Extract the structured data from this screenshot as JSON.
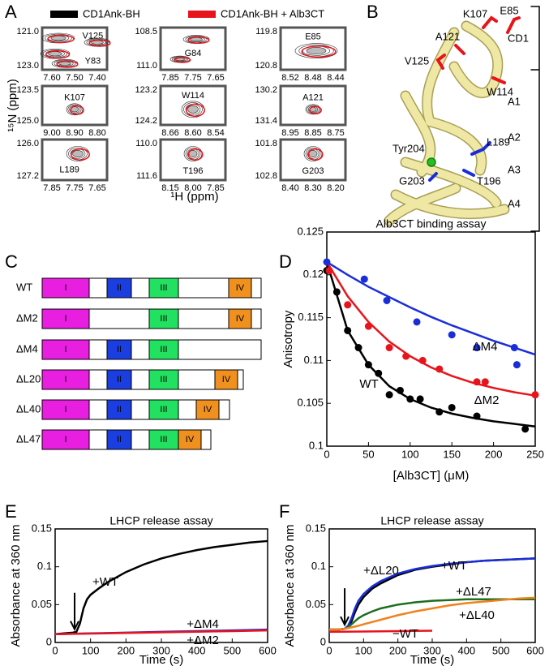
{
  "panel_labels": [
    "A",
    "B",
    "C",
    "D",
    "E",
    "F"
  ],
  "nmr": {
    "legend": [
      {
        "name": "CD1Ank-BH",
        "color": "#000000"
      },
      {
        "name": "CD1Ank-BH + Alb3CT",
        "color": "#e8141c"
      }
    ],
    "x_label": "¹H (ppm)",
    "y_label": "¹⁵N (ppm)",
    "cells": [
      {
        "labels": [
          "V125",
          "Y83"
        ],
        "yticks": [
          "121.0",
          "123.0"
        ],
        "xticks": [
          "7.60",
          "7.50",
          "7.40"
        ]
      },
      {
        "labels": [
          "G84"
        ],
        "yticks": [
          "108.5",
          "111.0"
        ],
        "xticks": [
          "7.85",
          "7.75",
          "7.65"
        ]
      },
      {
        "labels": [
          "E85"
        ],
        "yticks": [
          "119.8",
          "120.8"
        ],
        "xticks": [
          "8.52",
          "8.48",
          "8.44"
        ]
      },
      {
        "labels": [
          "K107"
        ],
        "yticks": [
          "123.5",
          "125.0"
        ],
        "xticks": [
          "9.00",
          "8.90",
          "8.80"
        ]
      },
      {
        "labels": [
          "W114"
        ],
        "yticks": [
          "123.2",
          "124.2"
        ],
        "xticks": [
          "8.66",
          "8.60",
          "8.54"
        ]
      },
      {
        "labels": [
          "A121"
        ],
        "yticks": [
          "130.2",
          "131.4"
        ],
        "xticks": [
          "8.95",
          "8.85",
          "8.75"
        ]
      },
      {
        "labels": [
          "L189"
        ],
        "yticks": [
          "126.0",
          "127.2"
        ],
        "xticks": [
          "7.85",
          "7.75",
          "7.65"
        ]
      },
      {
        "labels": [
          "T196"
        ],
        "yticks": [
          "110.0",
          "111.6"
        ],
        "xticks": [
          "8.15",
          "8.00",
          "7.85"
        ]
      },
      {
        "labels": [
          "G203"
        ],
        "yticks": [
          "101.8",
          "102.8"
        ],
        "xticks": [
          "8.40",
          "8.30",
          "8.20"
        ]
      }
    ]
  },
  "structure": {
    "residues": [
      {
        "label": "K107",
        "color": "#e8141c"
      },
      {
        "label": "E85",
        "color": "#e8141c"
      },
      {
        "label": "A121",
        "color": "#e8141c"
      },
      {
        "label": "V125",
        "color": "#e8141c"
      },
      {
        "label": "W114",
        "color": "#e8141c"
      },
      {
        "label": "Tyr204",
        "color": "#1a9a1a"
      },
      {
        "label": "L189",
        "color": "#1a2ed8"
      },
      {
        "label": "T196",
        "color": "#1a2ed8"
      },
      {
        "label": "G203",
        "color": "#1a2ed8"
      }
    ],
    "regions": [
      "CD1",
      "A1",
      "A2",
      "A3",
      "A4"
    ]
  },
  "constructs": {
    "domains": [
      {
        "label": "I",
        "color": "#e81ee0"
      },
      {
        "label": "II",
        "color": "#1a3ee0"
      },
      {
        "label": "III",
        "color": "#22e060"
      },
      {
        "label": "IV",
        "color": "#f0901e"
      }
    ],
    "rows": [
      {
        "name": "WT",
        "domains": [
          0,
          1,
          2,
          3
        ]
      },
      {
        "name": "ΔM2",
        "domains": [
          0,
          2,
          3
        ]
      },
      {
        "name": "ΔM4",
        "domains": [
          0,
          1,
          2
        ]
      },
      {
        "name": "ΔL20",
        "domains": [
          0,
          1,
          2,
          3
        ]
      },
      {
        "name": "ΔL40",
        "domains": [
          0,
          1,
          2,
          3
        ]
      },
      {
        "name": "ΔL47",
        "domains": [
          0,
          1,
          2,
          3
        ]
      }
    ]
  },
  "chart_data": [
    {
      "type": "scatter",
      "title": "Alb3CT binding assay",
      "x_label": "[Alb3CT] (μM)",
      "y_label": "Anisotropy",
      "xlim": [
        0,
        250
      ],
      "ylim": [
        0.1,
        0.125
      ],
      "xticks": [
        0,
        50,
        100,
        150,
        200,
        250
      ],
      "yticks": [
        0.1,
        0.105,
        0.11,
        0.115,
        0.12,
        0.125
      ],
      "fit_x": [
        0,
        25,
        50,
        75,
        100,
        125,
        150,
        175,
        200,
        225,
        250
      ],
      "series": [
        {
          "name": "WT",
          "color": "#000000",
          "x": [
            0,
            12,
            25,
            38,
            50,
            62,
            75,
            88,
            100,
            112,
            135,
            150,
            180,
            238
          ],
          "values": [
            0.1205,
            0.118,
            0.1135,
            0.1115,
            0.1095,
            0.1085,
            0.106,
            0.1065,
            0.1055,
            0.1055,
            0.104,
            0.1045,
            0.1035,
            0.102
          ],
          "fit_values": [
            0.1215,
            0.1135,
            0.1095,
            0.107,
            0.1055,
            0.1045,
            0.1038,
            0.1033,
            0.1029,
            0.1026,
            0.1023
          ]
        },
        {
          "name": "ΔM2",
          "color": "#e8141c",
          "x": [
            3,
            25,
            50,
            75,
            95,
            115,
            135,
            180,
            190,
            250
          ],
          "values": [
            0.1205,
            0.1165,
            0.114,
            0.1115,
            0.1105,
            0.11,
            0.109,
            0.1075,
            0.1075,
            0.106
          ],
          "fit_values": [
            0.1215,
            0.1175,
            0.1145,
            0.1122,
            0.1105,
            0.1092,
            0.1082,
            0.1074,
            0.1068,
            0.1063,
            0.1059
          ]
        },
        {
          "name": "ΔM4",
          "color": "#1a2ed8",
          "x": [
            0,
            45,
            72,
            108,
            150,
            180,
            225,
            228
          ],
          "values": [
            0.1215,
            0.1195,
            0.117,
            0.1145,
            0.113,
            0.1115,
            0.1115,
            0.1095
          ],
          "fit_values": [
            0.1215,
            0.12,
            0.1186,
            0.1174,
            0.1162,
            0.1151,
            0.1141,
            0.1132,
            0.1123,
            0.1115,
            0.1107
          ]
        }
      ]
    },
    {
      "type": "line",
      "title": "LHCP release assay",
      "x_label": "Time (s)",
      "y_label": "Absorbance at 360 nm",
      "xlim": [
        0,
        600
      ],
      "ylim": [
        0,
        0.15
      ],
      "xticks": [
        0,
        100,
        200,
        300,
        400,
        500,
        600
      ],
      "yticks": [
        0,
        0.05,
        0.1,
        0.15
      ],
      "addition_time": 55,
      "series": [
        {
          "name": "+WT",
          "color": "#000000",
          "x": [
            0,
            25,
            50,
            60,
            70,
            80,
            90,
            100,
            125,
            150,
            200,
            250,
            300,
            350,
            400,
            450,
            500,
            550,
            600
          ],
          "values": [
            0.011,
            0.012,
            0.013,
            0.014,
            0.025,
            0.045,
            0.057,
            0.063,
            0.072,
            0.08,
            0.093,
            0.103,
            0.111,
            0.117,
            0.122,
            0.126,
            0.129,
            0.132,
            0.134
          ]
        },
        {
          "name": "+ΔM4",
          "color": "#1a2ed8",
          "x": [
            0,
            100,
            200,
            300,
            400,
            500,
            600
          ],
          "values": [
            0.011,
            0.012,
            0.013,
            0.014,
            0.015,
            0.016,
            0.017
          ]
        },
        {
          "name": "+ΔM2",
          "color": "#e8141c",
          "x": [
            0,
            100,
            200,
            300,
            400,
            500,
            600
          ],
          "values": [
            0.011,
            0.0118,
            0.0126,
            0.0134,
            0.0142,
            0.015,
            0.016
          ]
        }
      ]
    },
    {
      "type": "line",
      "title": "LHCP release assay",
      "x_label": "Time (s)",
      "y_label": "Absorbance at 360 nm",
      "xlim": [
        0,
        600
      ],
      "ylim": [
        0,
        0.15
      ],
      "xticks": [
        0,
        100,
        200,
        300,
        400,
        500,
        600
      ],
      "yticks": [
        0,
        0.05,
        0.1,
        0.15
      ],
      "addition_time": 45,
      "series": [
        {
          "name": "+WT",
          "color": "#000000",
          "x": [
            0,
            25,
            45,
            55,
            65,
            75,
            85,
            100,
            125,
            150,
            200,
            250,
            300,
            350,
            400,
            450,
            500,
            550,
            600
          ],
          "values": [
            0.017,
            0.017,
            0.018,
            0.02,
            0.028,
            0.04,
            0.05,
            0.06,
            0.071,
            0.078,
            0.089,
            0.096,
            0.1,
            0.103,
            0.106,
            0.108,
            0.109,
            0.11,
            0.111
          ]
        },
        {
          "name": "+ΔL20",
          "color": "#1a2ed8",
          "x": [
            0,
            25,
            45,
            55,
            65,
            75,
            85,
            100,
            125,
            150,
            200,
            250,
            300,
            350,
            400,
            450,
            500,
            550,
            600
          ],
          "values": [
            0.017,
            0.017,
            0.018,
            0.022,
            0.032,
            0.045,
            0.055,
            0.064,
            0.074,
            0.081,
            0.091,
            0.097,
            0.101,
            0.104,
            0.106,
            0.108,
            0.109,
            0.11,
            0.111
          ]
        },
        {
          "name": "+ΔL47",
          "color": "#1e6e1e",
          "x": [
            0,
            25,
            45,
            55,
            65,
            75,
            85,
            100,
            125,
            150,
            200,
            250,
            300,
            350,
            400,
            450,
            500,
            550,
            600
          ],
          "values": [
            0.017,
            0.017,
            0.018,
            0.02,
            0.024,
            0.028,
            0.032,
            0.036,
            0.041,
            0.045,
            0.05,
            0.053,
            0.055,
            0.056,
            0.057,
            0.057,
            0.057,
            0.057,
            0.057
          ]
        },
        {
          "name": "+ΔL40",
          "color": "#f0821e",
          "x": [
            0,
            25,
            45,
            55,
            65,
            75,
            85,
            100,
            125,
            150,
            200,
            250,
            300,
            350,
            400,
            450,
            500,
            550,
            600
          ],
          "values": [
            0.017,
            0.017,
            0.018,
            0.019,
            0.02,
            0.021,
            0.022,
            0.024,
            0.027,
            0.03,
            0.036,
            0.041,
            0.045,
            0.049,
            0.052,
            0.054,
            0.056,
            0.058,
            0.059
          ]
        },
        {
          "name": "−WT",
          "color": "#e8141c",
          "x": [
            0,
            100,
            200,
            300
          ],
          "values": [
            0.014,
            0.0145,
            0.015,
            0.0155
          ]
        }
      ]
    }
  ]
}
